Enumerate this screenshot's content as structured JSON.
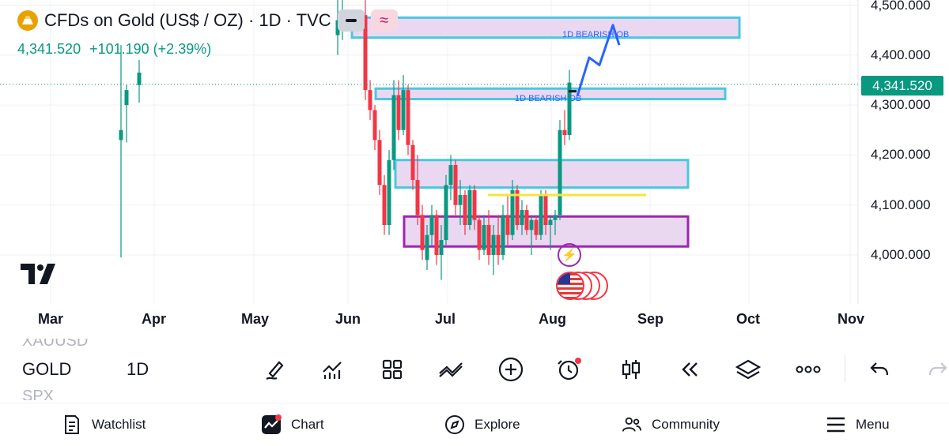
{
  "header": {
    "title": "CFDs on Gold (US$ / OZ) · 1D · TVC",
    "price": "4,341.520",
    "change": "+101.190 (+2.39%)",
    "minus_btn_icon": "minus-icon",
    "wave_btn_icon": "wave-icon"
  },
  "price_axis": {
    "labels": [
      "4,500.000",
      "4,400.000",
      "4,300.000",
      "4,200.000",
      "4,100.000",
      "4,000.000"
    ],
    "current": "4,341.520"
  },
  "time_axis": {
    "labels": [
      "Mar",
      "Apr",
      "May",
      "Jun",
      "Jul",
      "Aug",
      "Sep",
      "Oct",
      "Nov"
    ]
  },
  "annotations": {
    "ob_upper": "1D BEARISH OB",
    "ob_lower": "1D BEARISH OB"
  },
  "symbols": {
    "above": "XAUUSD",
    "current": "GOLD",
    "below": "SPX",
    "timeframe": "1D"
  },
  "toolbar": {
    "icons": [
      "pen-icon",
      "indicators-icon",
      "layout-grid-icon",
      "patterns-icon",
      "add-icon",
      "alert-clock-icon",
      "candles-icon",
      "replay-icon",
      "layers-icon",
      "more-icon",
      "undo-icon",
      "redo-icon"
    ]
  },
  "nav": {
    "items": [
      {
        "label": "Watchlist",
        "icon": "watchlist-icon"
      },
      {
        "label": "Chart",
        "icon": "chart-icon"
      },
      {
        "label": "Explore",
        "icon": "compass-icon"
      },
      {
        "label": "Community",
        "icon": "community-icon"
      },
      {
        "label": "Menu",
        "icon": "menu-icon"
      }
    ]
  },
  "colors": {
    "up": "#089981",
    "down": "#f23645",
    "zone_fill": "#e8d4f0",
    "zone_cyan": "#4ac8e0",
    "zone_purple": "#9c27b0",
    "level_yellow": "#f5e63a",
    "arrow_blue": "#2962ff"
  },
  "chart_data": {
    "type": "candlestick",
    "symbol": "XAUUSD",
    "timeframe": "1D",
    "ylim": [
      3920,
      4520
    ],
    "current_price": 4341.52,
    "zones": [
      {
        "label": "1D BEARISH OB",
        "low": 4435,
        "high": 4475,
        "border": "cyan"
      },
      {
        "label": "1D BEARISH OB",
        "low": 4312,
        "high": 4333,
        "border": "cyan"
      },
      {
        "label": "",
        "low": 4135,
        "high": 4190,
        "border": "cyan"
      },
      {
        "label": "",
        "low": 4017,
        "high": 4077,
        "border": "purple"
      }
    ],
    "level_line": 4120,
    "projection": [
      4318,
      4395,
      4380,
      4460,
      4420
    ]
  }
}
